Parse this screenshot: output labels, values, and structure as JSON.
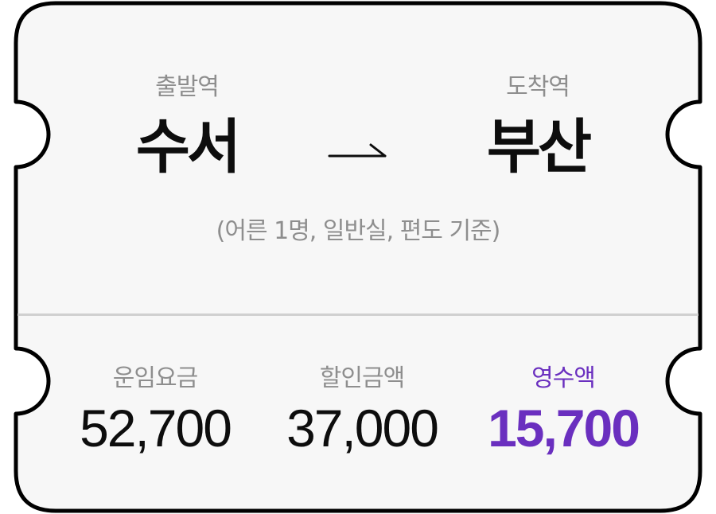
{
  "route": {
    "departure_label": "출발역",
    "departure_station": "수서",
    "arrival_label": "도착역",
    "arrival_station": "부산",
    "arrow_icon": "right-arrow-icon",
    "criteria_note": "(어른 1명, 일반실, 편도 기준)"
  },
  "fares": {
    "base_label": "운임요금",
    "base_amount": "52,700",
    "discount_label": "할인금액",
    "discount_amount": "37,000",
    "receipt_label": "영수액",
    "receipt_amount": "15,700"
  },
  "colors": {
    "accent": "#6a2fbf",
    "label_gray": "#8e8e8e",
    "text_dark": "#0d0d0d",
    "card_background": "#f7f7f7",
    "divider": "#d0d0d0"
  }
}
